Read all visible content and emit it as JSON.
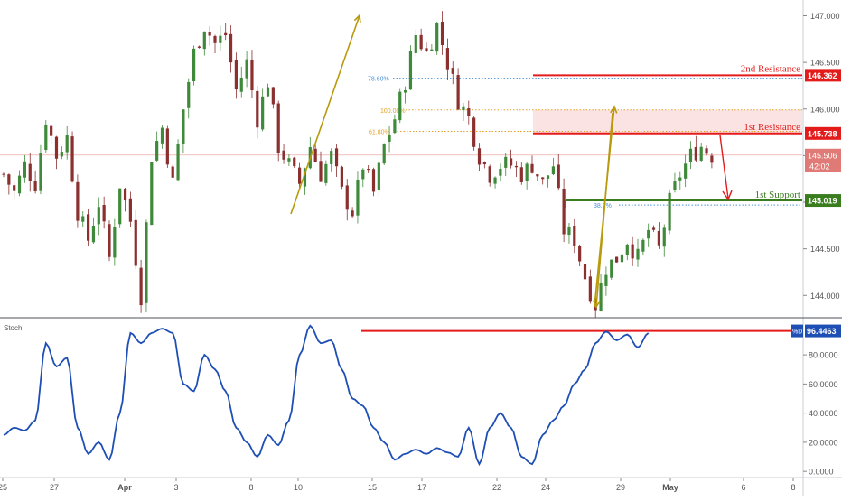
{
  "chart_data": [
    {
      "type": "candlestick",
      "panel": "price",
      "y_axis_ticks": [
        144.0,
        144.5,
        145.0,
        145.5,
        146.0,
        146.5,
        147.0
      ],
      "y_tick_labels": [
        "144.000",
        "144.500",
        "145.000",
        "145.500",
        "146.000",
        "146.500",
        "147.000"
      ],
      "ylim": [
        143.78,
        147.15
      ],
      "x_tick_labels": [
        "25",
        "27",
        "Apr",
        "3",
        "8",
        "10",
        "15",
        "17",
        "22",
        "24",
        "29",
        "May",
        "6",
        "8"
      ],
      "close_path": [
        [
          0,
          145.3
        ],
        [
          2,
          145.1
        ],
        [
          4,
          145.4
        ],
        [
          6,
          145.2
        ],
        [
          8,
          145.9
        ],
        [
          10,
          145.5
        ],
        [
          12,
          145.7
        ],
        [
          14,
          144.9
        ],
        [
          16,
          144.6
        ],
        [
          18,
          145.0
        ],
        [
          20,
          144.4
        ],
        [
          22,
          145.2
        ],
        [
          24,
          144.8
        ],
        [
          26,
          144.0
        ],
        [
          28,
          145.5
        ],
        [
          30,
          145.8
        ],
        [
          32,
          145.2
        ],
        [
          34,
          146.0
        ],
        [
          36,
          146.6
        ],
        [
          38,
          146.9
        ],
        [
          40,
          146.7
        ],
        [
          42,
          146.8
        ],
        [
          44,
          146.2
        ],
        [
          46,
          146.5
        ],
        [
          48,
          145.9
        ],
        [
          50,
          146.3
        ],
        [
          52,
          145.6
        ],
        [
          54,
          145.4
        ],
        [
          56,
          145.2
        ],
        [
          58,
          145.6
        ],
        [
          60,
          145.3
        ],
        [
          62,
          145.5
        ],
        [
          64,
          145.1
        ],
        [
          66,
          144.9
        ],
        [
          68,
          145.4
        ],
        [
          70,
          145.1
        ],
        [
          72,
          145.6
        ],
        [
          74,
          145.9
        ],
        [
          76,
          146.3
        ],
        [
          78,
          146.8
        ],
        [
          80,
          146.6
        ],
        [
          82,
          146.9
        ],
        [
          84,
          146.5
        ],
        [
          86,
          146.1
        ],
        [
          88,
          145.9
        ],
        [
          90,
          145.5
        ],
        [
          92,
          145.3
        ],
        [
          94,
          145.4
        ],
        [
          96,
          145.4
        ],
        [
          98,
          145.3
        ],
        [
          100,
          145.4
        ],
        [
          102,
          145.2
        ],
        [
          104,
          145.4
        ],
        [
          106,
          144.7
        ],
        [
          108,
          144.6
        ],
        [
          110,
          144.2
        ],
        [
          112,
          143.9
        ],
        [
          114,
          144.3
        ],
        [
          116,
          144.4
        ],
        [
          118,
          144.6
        ],
        [
          120,
          144.4
        ],
        [
          122,
          144.7
        ],
        [
          124,
          144.5
        ],
        [
          126,
          145.0
        ],
        [
          128,
          145.3
        ],
        [
          130,
          145.5
        ],
        [
          132,
          145.6
        ],
        [
          134,
          145.5
        ]
      ],
      "current_price": "145.506",
      "countdown": "42:02",
      "annotations": [
        {
          "label": "2nd Resistance",
          "level": 146.362,
          "value_label": "146.362",
          "color": "#e31b1b"
        },
        {
          "label": "1st Resistance",
          "level": 145.738,
          "value_label": "145.738",
          "color": "#e31b1b"
        },
        {
          "label": "1st Support",
          "level": 145.019,
          "value_label": "145.019",
          "color": "#3a7d1e"
        }
      ],
      "resistance_zone": [
        145.738,
        145.99
      ],
      "fib_levels": [
        {
          "label": "78.60%",
          "level": 146.33,
          "color": "#4a90d9"
        },
        {
          "label": "100.00%",
          "level": 145.99,
          "color": "#e3a12a"
        },
        {
          "label": "61.80%",
          "level": 145.76,
          "color": "#e3a12a"
        },
        {
          "label": "38.2%",
          "level": 144.97,
          "color": "#4a90d9"
        }
      ],
      "colors": {
        "up": "#3f8a3a",
        "down": "#8b2f2f",
        "resistance": "#e31b1b",
        "support": "#3a7d1e",
        "arrows": "#b89a0c",
        "current": "#d9534f"
      }
    },
    {
      "type": "line",
      "panel": "oscillator",
      "title": "Stoch",
      "series_label": "%D",
      "current_value": "96.4463",
      "y_axis_ticks": [
        0,
        20,
        40,
        60,
        80
      ],
      "y_tick_labels": [
        "0.0000",
        "20.0000",
        "40.0000",
        "60.0000",
        "80.0000"
      ],
      "ylim": [
        -3,
        103
      ],
      "resistance_level": 96.4463,
      "series": [
        {
          "values_path": [
            [
              0,
              25
            ],
            [
              2,
              30
            ],
            [
              4,
              28
            ],
            [
              6,
              35
            ],
            [
              8,
              88
            ],
            [
              10,
              72
            ],
            [
              12,
              78
            ],
            [
              14,
              30
            ],
            [
              16,
              12
            ],
            [
              18,
              20
            ],
            [
              20,
              8
            ],
            [
              22,
              40
            ],
            [
              24,
              95
            ],
            [
              26,
              88
            ],
            [
              28,
              95
            ],
            [
              30,
              98
            ],
            [
              32,
              95
            ],
            [
              34,
              60
            ],
            [
              36,
              55
            ],
            [
              38,
              80
            ],
            [
              40,
              70
            ],
            [
              42,
              55
            ],
            [
              44,
              30
            ],
            [
              46,
              20
            ],
            [
              48,
              10
            ],
            [
              50,
              25
            ],
            [
              52,
              18
            ],
            [
              54,
              35
            ],
            [
              56,
              80
            ],
            [
              58,
              100
            ],
            [
              60,
              88
            ],
            [
              62,
              90
            ],
            [
              64,
              70
            ],
            [
              66,
              50
            ],
            [
              68,
              45
            ],
            [
              70,
              30
            ],
            [
              72,
              20
            ],
            [
              74,
              8
            ],
            [
              76,
              12
            ],
            [
              78,
              15
            ],
            [
              80,
              12
            ],
            [
              82,
              16
            ],
            [
              84,
              13
            ],
            [
              86,
              10
            ],
            [
              88,
              30
            ],
            [
              90,
              5
            ],
            [
              92,
              30
            ],
            [
              94,
              40
            ],
            [
              96,
              30
            ],
            [
              98,
              10
            ],
            [
              100,
              5
            ],
            [
              102,
              25
            ],
            [
              104,
              35
            ],
            [
              106,
              45
            ],
            [
              108,
              60
            ],
            [
              110,
              70
            ],
            [
              112,
              88
            ],
            [
              114,
              96
            ],
            [
              116,
              90
            ],
            [
              118,
              94
            ],
            [
              120,
              85
            ],
            [
              122,
              95
            ]
          ],
          "color": "#1e4fb4"
        }
      ],
      "colors": {
        "line": "#1e4fb4",
        "resistance": "#e31b1b"
      }
    }
  ]
}
